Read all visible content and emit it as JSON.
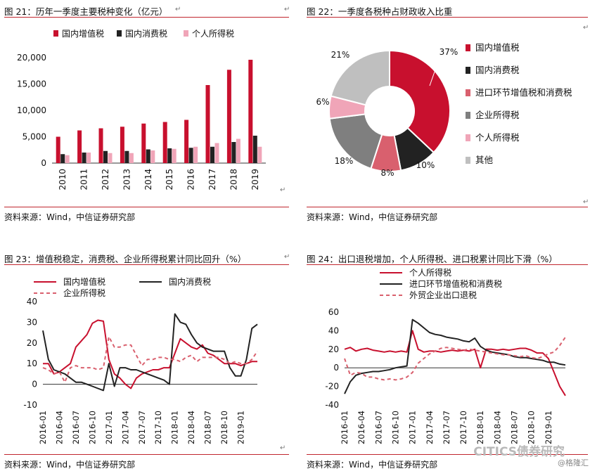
{
  "panels": [
    {
      "title": "图 21：历年一季度主要税种变化（亿元）",
      "source": "资料来源：Wind，中信证券研究部",
      "chart_data": {
        "type": "bar",
        "title": "历年一季度主要税种变化（亿元）",
        "categories": [
          "2010",
          "2011",
          "2012",
          "2013",
          "2014",
          "2015",
          "2016",
          "2017",
          "2018",
          "2019"
        ],
        "series": [
          {
            "name": "国内增值税",
            "color": "#c8102e",
            "values": [
              5000,
              6200,
              6600,
              6900,
              7500,
              7800,
              8200,
              14800,
              17700,
              19600
            ]
          },
          {
            "name": "国内消费税",
            "color": "#222222",
            "values": [
              1700,
              2000,
              2300,
              2300,
              2600,
              2800,
              2900,
              3100,
              4000,
              5200
            ]
          },
          {
            "name": "个人所得税",
            "color": "#f0a5b8",
            "values": [
              1500,
              2000,
              1900,
              1900,
              2400,
              2700,
              3100,
              3800,
              4600,
              3100
            ]
          }
        ],
        "ylim": [
          0,
          20000
        ],
        "yticks": [
          "0",
          "5,000",
          "10,000",
          "15,000",
          "20,000"
        ],
        "legend": "top"
      }
    },
    {
      "title": "图 22：一季度各税种占财政收入比重",
      "source": "资料来源：Wind，中信证券研究部",
      "chart_data": {
        "type": "pie",
        "title": "一季度各税种占财政收入比重",
        "slices": [
          {
            "name": "国内增值税",
            "value": 37,
            "label": "37%",
            "color": "#c8102e"
          },
          {
            "name": "国内消费税",
            "value": 10,
            "label": "10%",
            "color": "#222222"
          },
          {
            "name": "进口环节增值税和消费税",
            "value": 8,
            "label": "8%",
            "color": "#d9606e"
          },
          {
            "name": "企业所得税",
            "value": 18,
            "label": "18%",
            "color": "#7f7f7f"
          },
          {
            "name": "个人所得税",
            "value": 6,
            "label": "6%",
            "color": "#f0a5b8"
          },
          {
            "name": "其他",
            "value": 21,
            "label": "21%",
            "color": "#bfbfbf"
          }
        ],
        "legend": "right"
      }
    },
    {
      "title": "图 23：增值税稳定，消费税、企业所得税累计同比回升（%）",
      "source": "资料来源：Wind，中信证券研究部",
      "chart_data": {
        "type": "line",
        "title": "增值税稳定，消费税、企业所得税累计同比回升（%）",
        "x": [
          "2016-01",
          "2016-02",
          "2016-03",
          "2016-04",
          "2016-05",
          "2016-06",
          "2016-07",
          "2016-08",
          "2016-09",
          "2016-10",
          "2016-11",
          "2016-12",
          "2017-01",
          "2017-02",
          "2017-03",
          "2017-04",
          "2017-05",
          "2017-06",
          "2017-07",
          "2017-08",
          "2017-09",
          "2017-10",
          "2017-11",
          "2017-12",
          "2018-01",
          "2018-02",
          "2018-03",
          "2018-04",
          "2018-05",
          "2018-06",
          "2018-07",
          "2018-08",
          "2018-09",
          "2018-10",
          "2018-11",
          "2018-12",
          "2019-01",
          "2019-02",
          "2019-03",
          "2019-04"
        ],
        "xticks": [
          "2016-01",
          "2016-04",
          "2016-07",
          "2016-10",
          "2017-01",
          "2017-04",
          "2017-07",
          "2017-10",
          "2018-01",
          "2018-04",
          "2018-07",
          "2018-10",
          "2019-01"
        ],
        "series": [
          {
            "name": "国内增值税",
            "color": "#c8102e",
            "dash": "",
            "values": [
              10,
              10,
              5,
              6,
              8,
              10,
              18,
              21,
              24,
              29.5,
              31,
              30.5,
              12,
              5,
              3,
              0,
              -2,
              3,
              5,
              6,
              7,
              7,
              8,
              8,
              15,
              22,
              20,
              18,
              17,
              19,
              15,
              14,
              12,
              10,
              10,
              10,
              9,
              10,
              11,
              11
            ]
          },
          {
            "name": "国内消费税",
            "color": "#222222",
            "dash": "",
            "values": [
              26,
              12,
              7,
              6,
              5,
              3,
              1,
              1,
              0,
              -1,
              -2,
              -3,
              10,
              -1,
              8,
              8,
              7,
              7,
              6,
              5,
              4,
              3,
              2,
              0,
              34,
              30,
              29,
              24,
              20,
              18,
              17,
              16,
              16,
              16,
              8,
              4,
              4,
              12,
              27,
              29
            ]
          },
          {
            "name": "企业所得税",
            "color": "#d9606e",
            "dash": "5,4",
            "values": [
              8,
              7,
              5,
              6,
              1,
              8,
              9,
              8,
              8,
              8,
              7,
              8,
              23,
              18,
              18,
              19,
              19,
              14,
              9,
              12,
              12,
              13,
              13,
              12,
              12,
              11,
              13,
              14,
              11,
              13,
              13,
              13,
              13,
              12,
              10,
              11,
              10,
              10,
              12,
              16
            ]
          }
        ],
        "ylim": [
          -10,
          40
        ],
        "yticks": [
          "-10",
          "0",
          "10",
          "20",
          "30",
          "40"
        ],
        "legend": "top"
      }
    },
    {
      "title": "图 24：出口退税增加，个人所得税、进口税累计同比下滑（%）",
      "source": "资料来源：Wind，中信证券研究部",
      "chart_data": {
        "type": "line",
        "title": "出口退税增加，个人所得税、进口税累计同比下滑（%）",
        "x": [
          "2016-01",
          "2016-02",
          "2016-03",
          "2016-04",
          "2016-05",
          "2016-06",
          "2016-07",
          "2016-08",
          "2016-09",
          "2016-10",
          "2016-11",
          "2016-12",
          "2017-01",
          "2017-02",
          "2017-03",
          "2017-04",
          "2017-05",
          "2017-06",
          "2017-07",
          "2017-08",
          "2017-09",
          "2017-10",
          "2017-11",
          "2017-12",
          "2018-01",
          "2018-02",
          "2018-03",
          "2018-04",
          "2018-05",
          "2018-06",
          "2018-07",
          "2018-08",
          "2018-09",
          "2018-10",
          "2018-11",
          "2018-12",
          "2019-01",
          "2019-02",
          "2019-03",
          "2019-04"
        ],
        "xticks": [
          "2016-01",
          "2016-04",
          "2016-07",
          "2016-10",
          "2017-01",
          "2017-04",
          "2017-07",
          "2017-10",
          "2018-01",
          "2018-04",
          "2018-07",
          "2018-10",
          "2019-01"
        ],
        "series": [
          {
            "name": "个人所得税",
            "color": "#c8102e",
            "dash": "",
            "values": [
              20,
              22,
              18,
              20,
              21,
              19,
              18,
              17,
              18,
              17,
              18,
              17,
              40,
              20,
              17,
              18,
              18,
              17,
              18,
              19,
              18,
              19,
              18,
              20,
              0,
              20,
              20,
              19,
              20,
              19,
              20,
              21,
              21,
              19,
              16,
              16,
              10,
              -5,
              -20,
              -30
            ]
          },
          {
            "name": "进口环节增值税和消费税",
            "color": "#222222",
            "dash": "",
            "values": [
              -28,
              -15,
              -8,
              -6,
              -5,
              -4,
              -4,
              -3,
              -2,
              0,
              1,
              2,
              52,
              48,
              43,
              38,
              36,
              35,
              33,
              32,
              31,
              29,
              28,
              32,
              23,
              19,
              17,
              16,
              15,
              14,
              12,
              11,
              11,
              10,
              9,
              8,
              6,
              6,
              4,
              3
            ]
          },
          {
            "name": "外贸企业出口退税",
            "color": "#d9606e",
            "dash": "5,4",
            "values": [
              10,
              -8,
              -5,
              -6,
              -10,
              -10,
              -12,
              -13,
              -12,
              -13,
              -12,
              -10,
              -5,
              5,
              10,
              15,
              18,
              21,
              22,
              21,
              20,
              19,
              20,
              19,
              18,
              17,
              16,
              15,
              14,
              14,
              13,
              12,
              13,
              11,
              10,
              12,
              15,
              17,
              24,
              33
            ]
          }
        ],
        "ylim": [
          -40,
          60
        ],
        "yticks": [
          "-40",
          "-20",
          "0",
          "20",
          "40",
          "60"
        ],
        "legend": "top"
      }
    }
  ],
  "watermark": "CITICS债券研究",
  "watermark2": "@格隆汇",
  "para_mark": "↵"
}
